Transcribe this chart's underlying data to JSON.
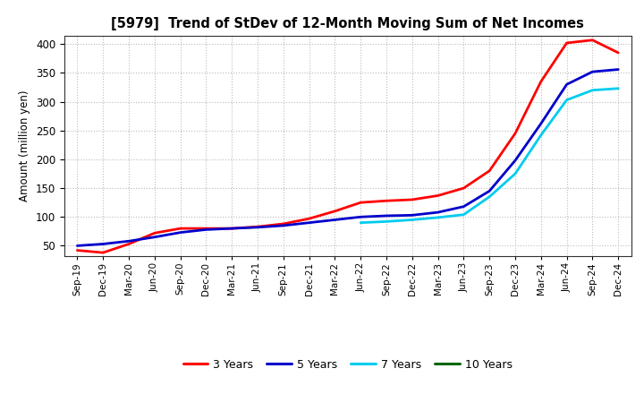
{
  "title": "[5979]  Trend of StDev of 12-Month Moving Sum of Net Incomes",
  "ylabel": "Amount (million yen)",
  "background_color": "#ffffff",
  "grid_color": "#bbbbbb",
  "legend_labels": [
    "3 Years",
    "5 Years",
    "7 Years",
    "10 Years"
  ],
  "legend_colors": [
    "#ff0000",
    "#0000cc",
    "#00ccee",
    "#006600"
  ],
  "ylim": [
    32,
    415
  ],
  "yticks": [
    50,
    100,
    150,
    200,
    250,
    300,
    350,
    400
  ],
  "x_labels": [
    "Sep-19",
    "Dec-19",
    "Mar-20",
    "Jun-20",
    "Sep-20",
    "Dec-20",
    "Mar-21",
    "Jun-21",
    "Sep-21",
    "Dec-21",
    "Mar-22",
    "Jun-22",
    "Sep-22",
    "Dec-22",
    "Mar-23",
    "Jun-23",
    "Sep-23",
    "Dec-23",
    "Mar-24",
    "Jun-24",
    "Sep-24",
    "Dec-24"
  ],
  "series_3y": [
    42,
    38,
    53,
    72,
    80,
    80,
    80,
    83,
    88,
    97,
    110,
    125,
    128,
    130,
    137,
    150,
    180,
    245,
    335,
    402,
    407,
    385
  ],
  "series_5y": [
    50,
    53,
    58,
    65,
    73,
    78,
    80,
    82,
    85,
    90,
    95,
    100,
    102,
    103,
    108,
    118,
    145,
    198,
    262,
    330,
    352,
    356
  ],
  "series_7y": [
    null,
    null,
    null,
    null,
    null,
    null,
    null,
    null,
    null,
    null,
    null,
    90,
    92,
    95,
    99,
    104,
    135,
    175,
    242,
    303,
    320,
    323
  ],
  "series_10y": [
    null,
    null,
    null,
    null,
    null,
    null,
    null,
    null,
    null,
    null,
    null,
    null,
    null,
    null,
    null,
    null,
    null,
    null,
    null,
    null,
    null,
    null
  ]
}
